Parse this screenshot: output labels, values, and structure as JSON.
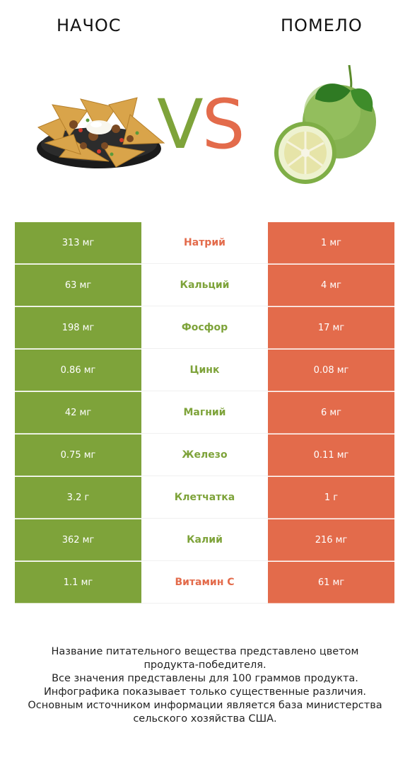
{
  "header": {
    "left_title": "НАЧОС",
    "right_title": "ПОМЕЛО",
    "vs_v": "V",
    "vs_s": "S"
  },
  "colors": {
    "green": "#7ea33a",
    "red": "#e36b4b"
  },
  "rows": [
    {
      "left": "313 мг",
      "label": "Натрий",
      "right": "1 мг",
      "winner": "red"
    },
    {
      "left": "63 мг",
      "label": "Кальций",
      "right": "4 мг",
      "winner": "green"
    },
    {
      "left": "198 мг",
      "label": "Фосфор",
      "right": "17 мг",
      "winner": "green"
    },
    {
      "left": "0.86 мг",
      "label": "Цинк",
      "right": "0.08 мг",
      "winner": "green"
    },
    {
      "left": "42 мг",
      "label": "Магний",
      "right": "6 мг",
      "winner": "green"
    },
    {
      "left": "0.75 мг",
      "label": "Железо",
      "right": "0.11 мг",
      "winner": "green"
    },
    {
      "left": "3.2 г",
      "label": "Клетчатка",
      "right": "1 г",
      "winner": "green"
    },
    {
      "left": "362 мг",
      "label": "Калий",
      "right": "216 мг",
      "winner": "green"
    },
    {
      "left": "1.1 мг",
      "label": "Витамин C",
      "right": "61 мг",
      "winner": "red"
    }
  ],
  "footnote": [
    "Название питательного вещества представлено цветом",
    "продукта-победителя.",
    "Все значения представлены для 100 граммов продукта.",
    "Инфографика показывает только существенные различия.",
    "Основным источником информации является база министерства",
    "сельского хозяйства США."
  ]
}
